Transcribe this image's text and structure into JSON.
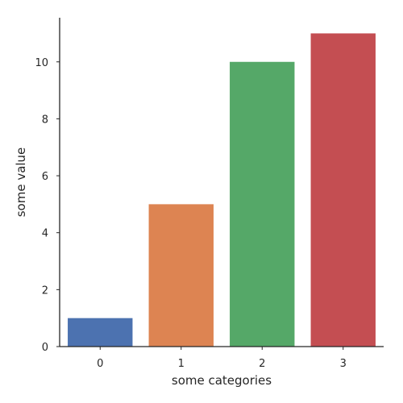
{
  "chart_data": {
    "type": "bar",
    "categories": [
      "0",
      "1",
      "2",
      "3"
    ],
    "values": [
      1,
      5,
      10,
      11
    ],
    "colors": [
      "#4c72b0",
      "#dd8452",
      "#55a868",
      "#c44e52"
    ],
    "xlabel": "some categories",
    "ylabel": "some value",
    "ylim": [
      0,
      11.55
    ],
    "yticks": [
      0,
      2,
      4,
      6,
      8,
      10
    ],
    "grid": false,
    "legend": "none"
  }
}
